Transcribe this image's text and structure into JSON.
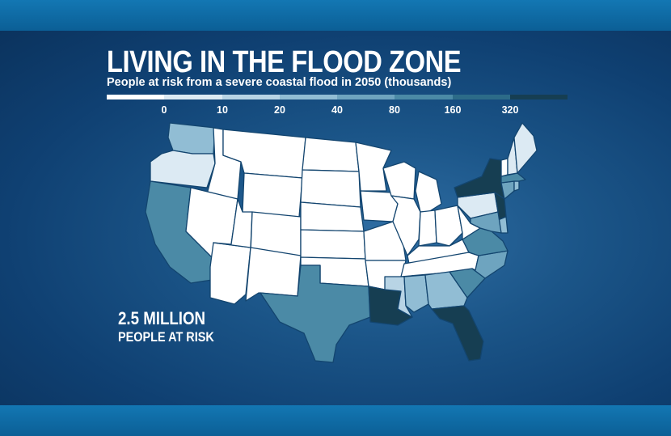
{
  "header": {
    "title": "LIVING IN THE FLOOD ZONE",
    "subtitle": "People at risk from a severe coastal flood in 2050 (thousands)"
  },
  "legend": {
    "ticks": [
      "0",
      "10",
      "20",
      "40",
      "80",
      "160",
      "320"
    ],
    "colors": [
      "#ffffff",
      "#dceaf3",
      "#b8d4e5",
      "#91bdd4",
      "#6ea4bf",
      "#4b8aa6",
      "#2c6b88",
      "#163e52"
    ]
  },
  "callout": {
    "value": "2.5 MILLION",
    "label": "PEOPLE AT RISK"
  },
  "map": {
    "states": [
      {
        "name": "Washington",
        "class": 3
      },
      {
        "name": "Oregon",
        "class": 1
      },
      {
        "name": "California",
        "class": 5
      },
      {
        "name": "Idaho",
        "class": 0
      },
      {
        "name": "Nevada",
        "class": 0
      },
      {
        "name": "Arizona",
        "class": 0
      },
      {
        "name": "Montana",
        "class": 0
      },
      {
        "name": "Wyoming",
        "class": 0
      },
      {
        "name": "Utah",
        "class": 0
      },
      {
        "name": "Colorado",
        "class": 0
      },
      {
        "name": "New Mexico",
        "class": 0
      },
      {
        "name": "North Dakota",
        "class": 0
      },
      {
        "name": "South Dakota",
        "class": 0
      },
      {
        "name": "Nebraska",
        "class": 0
      },
      {
        "name": "Kansas",
        "class": 0
      },
      {
        "name": "Oklahoma",
        "class": 0
      },
      {
        "name": "Texas",
        "class": 5
      },
      {
        "name": "Minnesota",
        "class": 0
      },
      {
        "name": "Iowa",
        "class": 0
      },
      {
        "name": "Missouri",
        "class": 0
      },
      {
        "name": "Arkansas",
        "class": 0
      },
      {
        "name": "Louisiana",
        "class": 7
      },
      {
        "name": "Wisconsin",
        "class": 0
      },
      {
        "name": "Illinois",
        "class": 0
      },
      {
        "name": "Michigan",
        "class": 0
      },
      {
        "name": "Indiana",
        "class": 0
      },
      {
        "name": "Ohio",
        "class": 0
      },
      {
        "name": "Kentucky",
        "class": 0
      },
      {
        "name": "Tennessee",
        "class": 0
      },
      {
        "name": "Mississippi",
        "class": 2
      },
      {
        "name": "Alabama",
        "class": 3
      },
      {
        "name": "Georgia",
        "class": 3
      },
      {
        "name": "Florida",
        "class": 7
      },
      {
        "name": "South Carolina",
        "class": 5
      },
      {
        "name": "North Carolina",
        "class": 4
      },
      {
        "name": "Virginia",
        "class": 5
      },
      {
        "name": "West Virginia",
        "class": 0
      },
      {
        "name": "Pennsylvania",
        "class": 1
      },
      {
        "name": "New York",
        "class": 7
      },
      {
        "name": "New Jersey",
        "class": 7
      },
      {
        "name": "Delaware",
        "class": 3
      },
      {
        "name": "Maryland",
        "class": 4
      },
      {
        "name": "Connecticut",
        "class": 4
      },
      {
        "name": "Rhode Island",
        "class": 3
      },
      {
        "name": "Massachusetts",
        "class": 5
      },
      {
        "name": "Vermont",
        "class": 0
      },
      {
        "name": "New Hampshire",
        "class": 1
      },
      {
        "name": "Maine",
        "class": 1
      }
    ]
  }
}
